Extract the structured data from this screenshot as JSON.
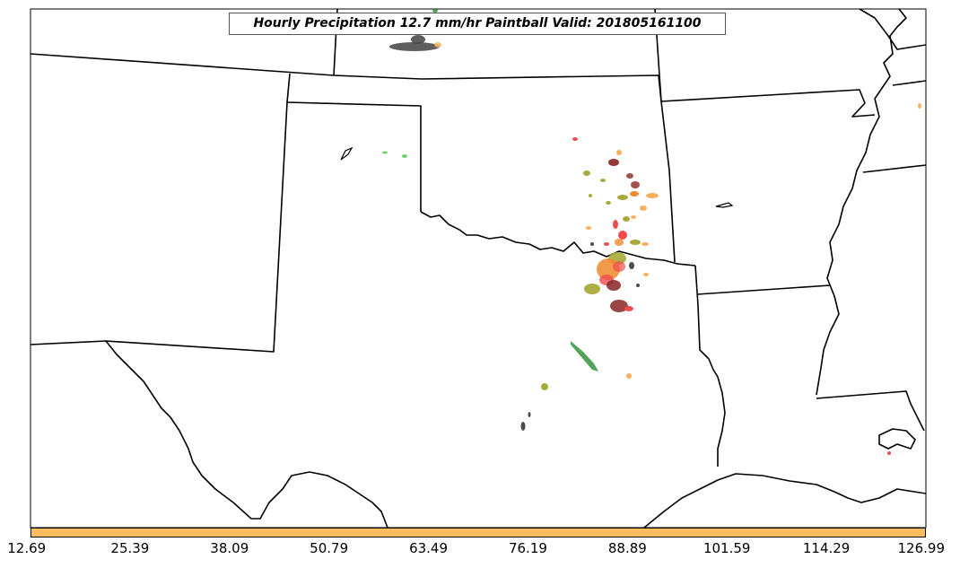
{
  "map": {
    "title": "Hourly Precipitation 12.7 mm/hr Paintball Valid: 201805161100",
    "colorbar": {
      "color": "#fbbd60",
      "ticks": [
        "12.69",
        "25.39",
        "38.09",
        "50.79",
        "63.49",
        "76.19",
        "88.89",
        "101.59",
        "114.29",
        "126.99"
      ]
    },
    "paintball_colors": [
      "#4d4d4d",
      "#f08a2a",
      "#f7b15c",
      "#a8ab3c",
      "#3f9a47",
      "#8b2424",
      "#ef4c4c",
      "#6bd46b"
    ]
  }
}
